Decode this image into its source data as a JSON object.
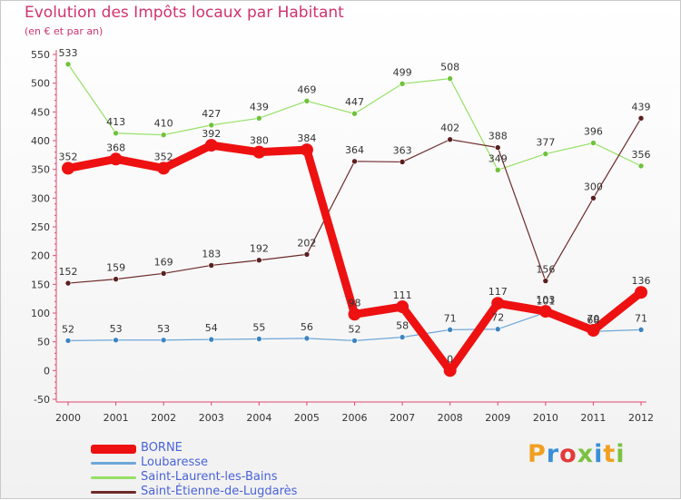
{
  "header": {
    "title": "Evolution des Impôts locaux par Habitant",
    "subtitle": "(en € et par an)"
  },
  "branding": {
    "logo_text": "Proxiti"
  },
  "chart_data": {
    "type": "line",
    "title": "Evolution des Impôts locaux par Habitant",
    "subtitle": "(en € et par an)",
    "xlabel": "",
    "ylabel": "",
    "categories": [
      "2000",
      "2001",
      "2002",
      "2003",
      "2004",
      "2005",
      "2006",
      "2007",
      "2008",
      "2009",
      "2010",
      "2011",
      "2012"
    ],
    "ylim": [
      -50,
      550
    ],
    "yticks": [
      -50,
      0,
      50,
      100,
      150,
      200,
      250,
      300,
      350,
      400,
      450,
      500,
      550
    ],
    "grid": false,
    "legend_position": "bottom-left",
    "series": [
      {
        "name": "BORNE",
        "color": "#ee1111",
        "values": [
          352,
          368,
          352,
          392,
          380,
          384,
          98,
          111,
          0,
          117,
          103,
          70,
          136
        ]
      },
      {
        "name": "Loubaresse",
        "color": "#6ea7d8",
        "values": [
          52,
          53,
          53,
          54,
          55,
          56,
          52,
          58,
          71,
          72,
          101,
          68,
          71
        ]
      },
      {
        "name": "Saint-Laurent-les-Bains",
        "color": "#96e065",
        "values": [
          533,
          413,
          410,
          427,
          439,
          469,
          447,
          499,
          508,
          349,
          377,
          396,
          356
        ]
      },
      {
        "name": "Saint-Étienne-de-Lugdarès",
        "color": "#6e2a2a",
        "values": [
          152,
          159,
          169,
          183,
          192,
          202,
          364,
          363,
          402,
          388,
          156,
          300,
          439
        ]
      }
    ]
  }
}
